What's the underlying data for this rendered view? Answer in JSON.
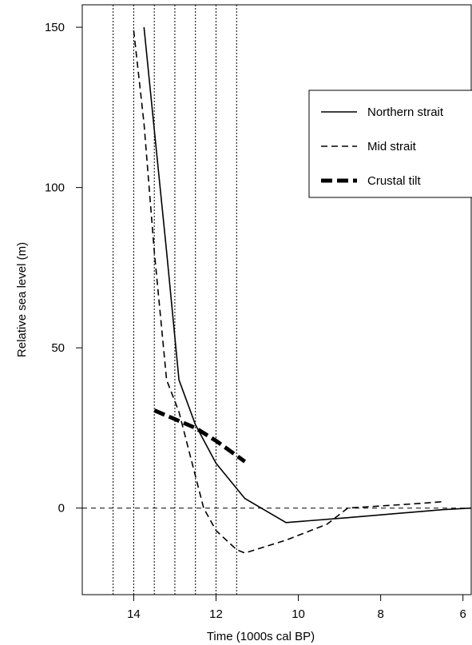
{
  "chart_data": {
    "type": "line",
    "xlabel": "Time (1000s cal BP)",
    "ylabel": "Relative sea level (m)",
    "x_reversed": true,
    "xlim": [
      15.25,
      5.8
    ],
    "ylim": [
      -27,
      157
    ],
    "x_ticks": [
      14,
      12,
      10,
      8,
      6
    ],
    "y_ticks": [
      0,
      50,
      100,
      150
    ],
    "reference_verticals": [
      14.5,
      14.0,
      13.5,
      13.0,
      12.5,
      12.0,
      11.5
    ],
    "zero_line": 0,
    "legend_position": "top-right",
    "series": [
      {
        "name": "Northern strait",
        "style": "solid",
        "color": "#000000",
        "points": [
          [
            13.75,
            150
          ],
          [
            13.5,
            118
          ],
          [
            13.2,
            80
          ],
          [
            12.9,
            40
          ],
          [
            12.5,
            26
          ],
          [
            12.0,
            14
          ],
          [
            11.3,
            3
          ],
          [
            10.3,
            -4.5
          ],
          [
            8.8,
            -3
          ],
          [
            6.5,
            -0.5
          ],
          [
            5.8,
            0
          ]
        ]
      },
      {
        "name": "Mid strait",
        "style": "dashed",
        "color": "#000000",
        "points": [
          [
            14.0,
            149
          ],
          [
            13.75,
            120
          ],
          [
            13.5,
            80
          ],
          [
            13.2,
            40
          ],
          [
            12.9,
            30
          ],
          [
            12.5,
            10
          ],
          [
            12.3,
            0
          ],
          [
            12.0,
            -7
          ],
          [
            11.5,
            -13
          ],
          [
            11.3,
            -14
          ],
          [
            10.3,
            -10
          ],
          [
            9.3,
            -5
          ],
          [
            8.8,
            0
          ],
          [
            7.0,
            1.5
          ],
          [
            6.5,
            2
          ]
        ]
      },
      {
        "name": "Crustal tilt",
        "style": "thick-dashed",
        "color": "#000000",
        "points": [
          [
            13.5,
            30.5
          ],
          [
            12.5,
            25
          ],
          [
            12.0,
            21
          ],
          [
            11.3,
            14.5
          ]
        ]
      }
    ]
  }
}
